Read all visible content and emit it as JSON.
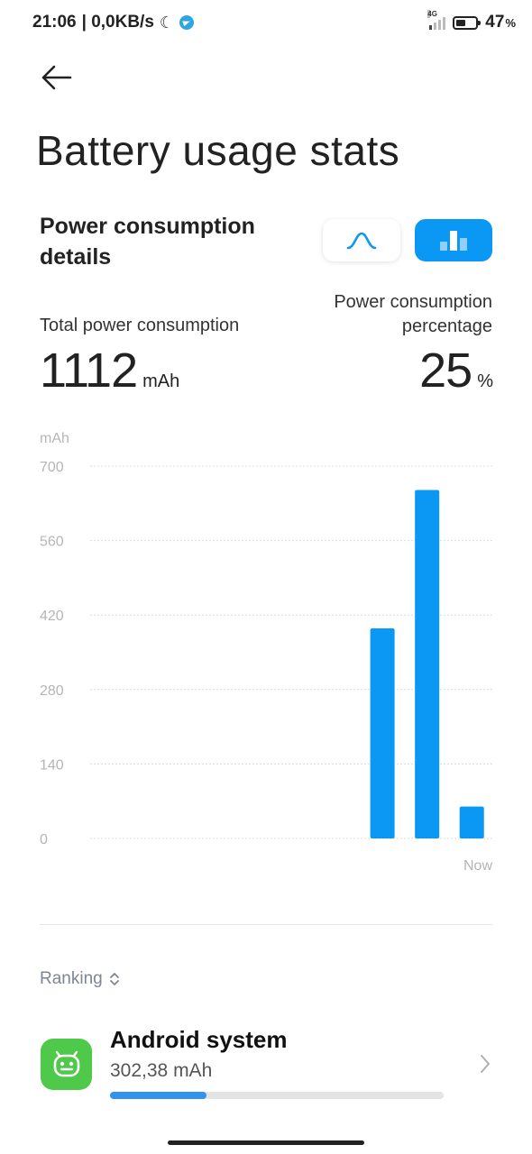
{
  "status_bar": {
    "time": "21:06",
    "net_speed": "| 0,0KB/s",
    "network": "4G",
    "battery_percent": "47",
    "battery_percent_unit": "%",
    "battery_level": 0.47,
    "icons": [
      "moon-icon",
      "telegram-icon",
      "signal-icon",
      "battery-icon"
    ]
  },
  "header": {
    "back_icon": "arrow-left-icon",
    "title": "Battery usage stats"
  },
  "details": {
    "title": "Power consumption details",
    "view_toggles": [
      {
        "name": "line-chart-view",
        "icon": "curve-icon",
        "active": false
      },
      {
        "name": "bar-chart-view",
        "icon": "bar-chart-icon",
        "active": true
      }
    ],
    "total_label": "Total power consumption",
    "total_value": "1112",
    "total_unit": "mAh",
    "percentage_label": "Power consumption percentage",
    "percentage_value": "25",
    "percentage_unit": "%"
  },
  "chart_data": {
    "type": "bar",
    "ylabel": "mAh",
    "yticks": [
      0,
      140,
      280,
      420,
      560,
      700
    ],
    "ylim": [
      0,
      700
    ],
    "x_end_label": "Now",
    "slot_count": 9,
    "values": [
      0,
      0,
      0,
      0,
      0,
      0,
      395,
      655,
      60
    ],
    "grid": true,
    "bar_color": "#0b98f5"
  },
  "ranking": {
    "label": "Ranking",
    "items": [
      {
        "name": "Android system",
        "value": "302,38 mAh",
        "share": 0.29,
        "icon": "android-system-icon"
      }
    ]
  },
  "colors": {
    "accent": "#0b98f5",
    "app_icon_bg": "#4ec94a",
    "progress": "#2f93ef"
  }
}
